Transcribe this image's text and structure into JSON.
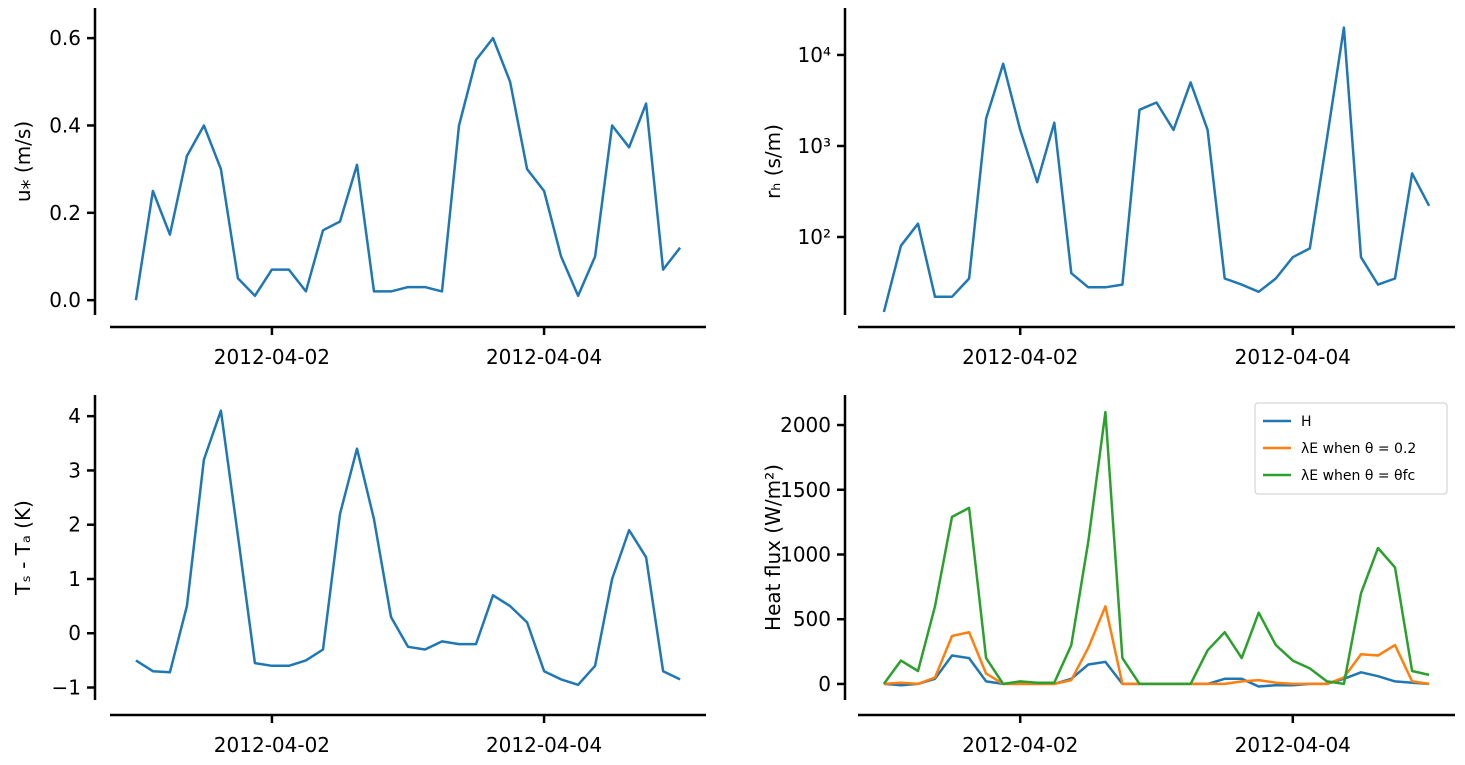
{
  "chart_data": [
    {
      "type": "line",
      "ylabel": "u⁎ (m/s)",
      "x": [
        1,
        1.125,
        1.25,
        1.375,
        1.5,
        1.625,
        1.75,
        1.875,
        2,
        2.125,
        2.25,
        2.375,
        2.5,
        2.625,
        2.75,
        2.875,
        3,
        3.125,
        3.25,
        3.375,
        3.5,
        3.625,
        3.75,
        3.875,
        4,
        4.125,
        4.25,
        4.375,
        4.5,
        4.625,
        4.75,
        4.875,
        5
      ],
      "series": [
        {
          "name": "u*",
          "color": "#1f77b4",
          "values": [
            0,
            0.25,
            0.15,
            0.33,
            0.4,
            0.3,
            0.05,
            0.01,
            0.07,
            0.07,
            0.02,
            0.16,
            0.18,
            0.31,
            0.02,
            0.02,
            0.03,
            0.03,
            0.02,
            0.4,
            0.55,
            0.6,
            0.5,
            0.3,
            0.25,
            0.1,
            0.01,
            0.1,
            0.4,
            0.35,
            0.45,
            0.07,
            0.12
          ]
        }
      ],
      "xlim": [
        0.81,
        5.19
      ],
      "xticks": [
        {
          "value": 2,
          "label": "2012-04-02"
        },
        {
          "value": 4,
          "label": "2012-04-04"
        }
      ],
      "ylim": [
        -0.034,
        0.669
      ],
      "yticks": [
        {
          "value": 0,
          "label": "0.0"
        },
        {
          "value": 0.2,
          "label": "0.2"
        },
        {
          "value": 0.4,
          "label": "0.4"
        },
        {
          "value": 0.6,
          "label": "0.6"
        }
      ]
    },
    {
      "type": "line",
      "ylabel": "rₕ (s/m)",
      "log_y": true,
      "x": [
        1,
        1.125,
        1.25,
        1.375,
        1.5,
        1.625,
        1.75,
        1.875,
        2,
        2.125,
        2.25,
        2.375,
        2.5,
        2.625,
        2.75,
        2.875,
        3,
        3.125,
        3.25,
        3.375,
        3.5,
        3.625,
        3.75,
        3.875,
        4,
        4.125,
        4.25,
        4.375,
        4.5,
        4.625,
        4.75,
        4.875,
        5
      ],
      "series": [
        {
          "name": "rh",
          "color": "#1f77b4",
          "values": [
            15,
            80,
            140,
            22,
            22,
            35,
            2000,
            8000,
            1500,
            400,
            1800,
            40,
            28,
            28,
            30,
            2500,
            3000,
            1500,
            5000,
            1500,
            35,
            30,
            25,
            35,
            60,
            75,
            1200,
            20000,
            60,
            30,
            35,
            500,
            220
          ]
        }
      ],
      "xlim": [
        0.81,
        5.19
      ],
      "xticks": [
        {
          "value": 2,
          "label": "2012-04-02"
        },
        {
          "value": 4,
          "label": "2012-04-04"
        }
      ],
      "ylim": [
        13.9,
        32800
      ],
      "yticks": [
        {
          "value": 100,
          "label": "10²"
        },
        {
          "value": 1000,
          "label": "10³"
        },
        {
          "value": 10000,
          "label": "10⁴"
        }
      ]
    },
    {
      "type": "line",
      "ylabel": "Tₛ - Tₐ (K)",
      "x": [
        1,
        1.125,
        1.25,
        1.375,
        1.5,
        1.625,
        1.75,
        1.875,
        2,
        2.125,
        2.25,
        2.375,
        2.5,
        2.625,
        2.75,
        2.875,
        3,
        3.125,
        3.25,
        3.375,
        3.5,
        3.625,
        3.75,
        3.875,
        4,
        4.125,
        4.25,
        4.375,
        4.5,
        4.625,
        4.75,
        4.875,
        5
      ],
      "series": [
        {
          "name": "Ts-Ta",
          "color": "#1f77b4",
          "values": [
            -0.5,
            -0.7,
            -0.72,
            0.5,
            3.2,
            4.1,
            1.8,
            -0.55,
            -0.6,
            -0.6,
            -0.5,
            -0.3,
            2.2,
            3.4,
            2.1,
            0.3,
            -0.25,
            -0.3,
            -0.15,
            -0.2,
            -0.2,
            0.7,
            0.5,
            0.2,
            -0.7,
            -0.85,
            -0.95,
            -0.6,
            1.0,
            1.9,
            1.4,
            -0.7,
            -0.85
          ]
        }
      ],
      "xlim": [
        0.81,
        5.19
      ],
      "xticks": [
        {
          "value": 2,
          "label": "2012-04-02"
        },
        {
          "value": 4,
          "label": "2012-04-04"
        }
      ],
      "ylim": [
        -1.23,
        4.39
      ],
      "yticks": [
        {
          "value": -1,
          "label": "−1"
        },
        0,
        1,
        2,
        3,
        4
      ]
    },
    {
      "type": "line",
      "ylabel": "Heat flux (W/m²)",
      "legend": "upper right",
      "x": [
        1,
        1.125,
        1.25,
        1.375,
        1.5,
        1.625,
        1.75,
        1.875,
        2,
        2.125,
        2.25,
        2.375,
        2.5,
        2.625,
        2.75,
        2.875,
        3,
        3.125,
        3.25,
        3.375,
        3.5,
        3.625,
        3.75,
        3.875,
        4,
        4.125,
        4.25,
        4.375,
        4.5,
        4.625,
        4.75,
        4.875,
        5
      ],
      "series": [
        {
          "name": "H",
          "color": "#1f77b4",
          "values": [
            0,
            -10,
            0,
            40,
            220,
            200,
            20,
            0,
            0,
            0,
            0,
            40,
            150,
            170,
            0,
            0,
            0,
            0,
            0,
            0,
            40,
            40,
            -20,
            -10,
            -10,
            0,
            0,
            40,
            90,
            60,
            20,
            10,
            0
          ]
        },
        {
          "name": "λE when θ = 0.2",
          "color": "#ff7f0e",
          "values": [
            0,
            10,
            0,
            50,
            370,
            400,
            80,
            0,
            0,
            0,
            0,
            30,
            280,
            600,
            0,
            0,
            0,
            0,
            0,
            0,
            0,
            20,
            30,
            10,
            0,
            0,
            0,
            50,
            230,
            220,
            300,
            20,
            0
          ]
        },
        {
          "name": "λE when θ = θfc",
          "color": "#2ca02c",
          "values": [
            0,
            180,
            100,
            600,
            1290,
            1360,
            200,
            0,
            20,
            10,
            10,
            300,
            1100,
            2100,
            200,
            0,
            0,
            0,
            0,
            260,
            400,
            200,
            550,
            300,
            180,
            120,
            20,
            0,
            700,
            1050,
            900,
            100,
            70
          ]
        }
      ],
      "xlim": [
        0.81,
        5.19
      ],
      "xticks": [
        {
          "value": 2,
          "label": "2012-04-02"
        },
        {
          "value": 4,
          "label": "2012-04-04"
        }
      ],
      "ylim": [
        -124,
        2232
      ],
      "yticks": [
        0,
        500,
        1000,
        1500,
        2000
      ]
    }
  ]
}
